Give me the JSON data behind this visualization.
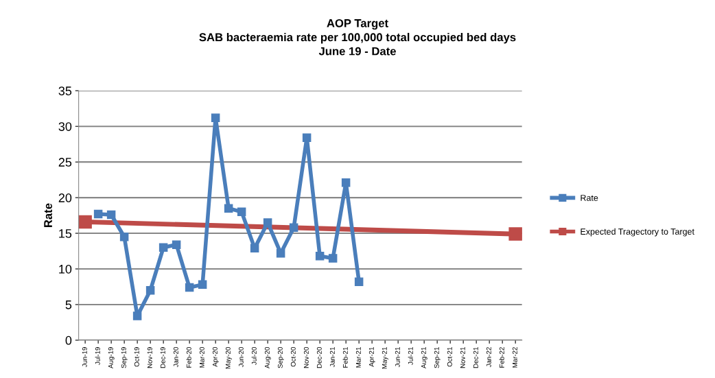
{
  "chart_data": {
    "type": "line",
    "title": "AOP Target\nSAB bacteraemia rate per 100,000 total occupied bed days\nJune 19 - Date",
    "ylabel": "Rate",
    "categories": [
      "Jun-19",
      "Jul-19",
      "Aug-19",
      "Sep-19",
      "Oct-19",
      "Nov-19",
      "Dec-19",
      "Jan-20",
      "Feb-20",
      "Mar-20",
      "Apr-20",
      "May-20",
      "Jun-20",
      "Jul-20",
      "Aug-20",
      "Sep-20",
      "Oct-20",
      "Nov-20",
      "Dec-20",
      "Jan-21",
      "Feb-21",
      "Mar-21",
      "Apr-21",
      "May-21",
      "Jun-21",
      "Jul-21",
      "Aug-21",
      "Sep-21",
      "Oct-21",
      "Nov-21",
      "Dec-21",
      "Jan-22",
      "Feb-22",
      "Mar-22"
    ],
    "series": [
      {
        "name": "Rate",
        "color": "#4a7ebb",
        "values": [
          null,
          17.7,
          17.6,
          14.5,
          3.4,
          7.0,
          13.0,
          13.4,
          7.4,
          7.8,
          31.2,
          18.5,
          18.0,
          12.9,
          16.5,
          12.2,
          15.8,
          28.4,
          11.8,
          11.5,
          22.1,
          8.2,
          null,
          null,
          null,
          null,
          null,
          null,
          null,
          null,
          null,
          null,
          null,
          null
        ]
      },
      {
        "name": "Expected Tragectory to Target",
        "color": "#be4b48",
        "values": [
          16.6,
          null,
          null,
          null,
          null,
          null,
          null,
          null,
          null,
          null,
          null,
          null,
          null,
          null,
          null,
          null,
          null,
          null,
          null,
          null,
          null,
          null,
          null,
          null,
          null,
          null,
          null,
          null,
          null,
          null,
          null,
          null,
          null,
          14.9
        ]
      }
    ],
    "ylim": [
      0,
      35
    ],
    "yticks": [
      0,
      5,
      10,
      15,
      20,
      25,
      30,
      35
    ],
    "grid": "y",
    "legend": "right",
    "marker": "square"
  }
}
